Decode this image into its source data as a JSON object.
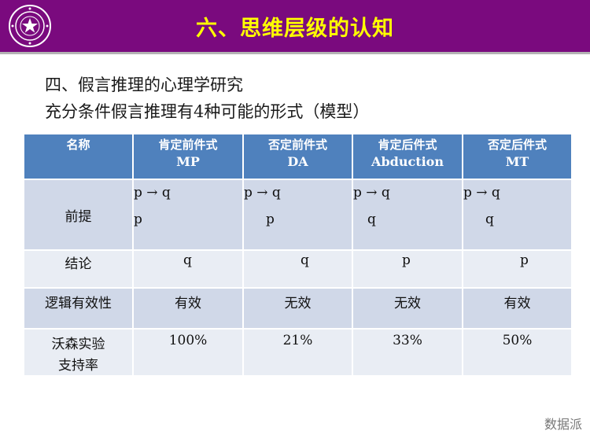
{
  "header": {
    "title": "六、思维层级的认知",
    "logo_icon": "university-seal-icon",
    "background": "#7a0a7e",
    "title_color": "#ffff00"
  },
  "subtitle_1": "四、假言推理的心理学研究",
  "subtitle_2": "充分条件假言推理有4种可能的形式（模型）",
  "table": {
    "header_color": "#4f81bd",
    "columns": [
      {
        "line1": "名称",
        "line2": ""
      },
      {
        "line1": "肯定前件式",
        "line2": "MP"
      },
      {
        "line1": "否定前件式",
        "line2": "DA"
      },
      {
        "line1": "肯定后件式",
        "line2": "Abduction"
      },
      {
        "line1": "否定后件式",
        "line2": "MT"
      }
    ],
    "rows": [
      {
        "label": "前提",
        "cells": [
          [
            "p → q",
            "p"
          ],
          [
            "p → q",
            "p"
          ],
          [
            "p → q",
            "q"
          ],
          [
            "p → q",
            "q"
          ]
        ]
      },
      {
        "label": "结论",
        "cells": [
          [
            "q"
          ],
          [
            "q"
          ],
          [
            "p"
          ],
          [
            "p"
          ]
        ]
      },
      {
        "label": "逻辑有效性",
        "cells": [
          [
            "有效"
          ],
          [
            "无效"
          ],
          [
            "无效"
          ],
          [
            "有效"
          ]
        ]
      },
      {
        "label_1": "沃森实验",
        "label_2": "支持率",
        "cells": [
          [
            "100%"
          ],
          [
            "21%"
          ],
          [
            "33%"
          ],
          [
            "50%"
          ]
        ]
      }
    ]
  },
  "watermark": "数据派"
}
